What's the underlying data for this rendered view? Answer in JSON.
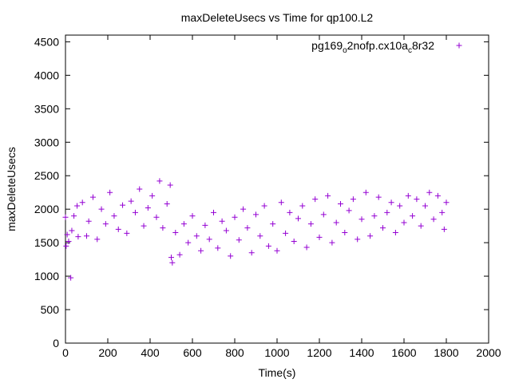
{
  "chart_data": {
    "type": "scatter",
    "title": "maxDeleteUsecs vs Time for qp100.L2",
    "xlabel": "Time(s)",
    "ylabel": "maxDeleteUsecs",
    "xlim": [
      0,
      2000
    ],
    "ylim": [
      0,
      4600
    ],
    "xticks": [
      0,
      200,
      400,
      600,
      800,
      1000,
      1200,
      1400,
      1600,
      1800,
      2000
    ],
    "yticks": [
      0,
      500,
      1000,
      1500,
      2000,
      2500,
      3000,
      3500,
      4000,
      4500
    ],
    "grid": false,
    "legend_position": "top-right",
    "marker": "+",
    "series": [
      {
        "name_parts": [
          "pg169",
          "o",
          "2nofp.cx10a",
          "c",
          "8r32"
        ],
        "color": "#9400d3",
        "points": [
          [
            0,
            1880
          ],
          [
            25,
            975
          ],
          [
            3,
            1450
          ],
          [
            8,
            1620
          ],
          [
            15,
            1520
          ],
          [
            30,
            1680
          ],
          [
            40,
            1900
          ],
          [
            55,
            2050
          ],
          [
            60,
            1590
          ],
          [
            80,
            2100
          ],
          [
            100,
            1600
          ],
          [
            110,
            1820
          ],
          [
            130,
            2180
          ],
          [
            150,
            1550
          ],
          [
            170,
            2000
          ],
          [
            190,
            1780
          ],
          [
            210,
            2250
          ],
          [
            230,
            1900
          ],
          [
            250,
            1700
          ],
          [
            270,
            2060
          ],
          [
            290,
            1640
          ],
          [
            310,
            2120
          ],
          [
            330,
            1950
          ],
          [
            350,
            2300
          ],
          [
            370,
            1750
          ],
          [
            390,
            2020
          ],
          [
            410,
            2200
          ],
          [
            430,
            1880
          ],
          [
            445,
            2420
          ],
          [
            460,
            1720
          ],
          [
            480,
            2080
          ],
          [
            495,
            2360
          ],
          [
            500,
            1280
          ],
          [
            505,
            1200
          ],
          [
            520,
            1650
          ],
          [
            540,
            1320
          ],
          [
            560,
            1780
          ],
          [
            580,
            1500
          ],
          [
            600,
            1900
          ],
          [
            620,
            1600
          ],
          [
            640,
            1380
          ],
          [
            660,
            1760
          ],
          [
            680,
            1550
          ],
          [
            700,
            1950
          ],
          [
            720,
            1420
          ],
          [
            740,
            1820
          ],
          [
            760,
            1680
          ],
          [
            780,
            1300
          ],
          [
            800,
            1880
          ],
          [
            820,
            1540
          ],
          [
            840,
            2000
          ],
          [
            860,
            1720
          ],
          [
            880,
            1350
          ],
          [
            900,
            1920
          ],
          [
            920,
            1600
          ],
          [
            940,
            2050
          ],
          [
            960,
            1450
          ],
          [
            980,
            1780
          ],
          [
            1000,
            1380
          ],
          [
            1020,
            2100
          ],
          [
            1040,
            1640
          ],
          [
            1060,
            1950
          ],
          [
            1080,
            1520
          ],
          [
            1100,
            1860
          ],
          [
            1120,
            2050
          ],
          [
            1140,
            1430
          ],
          [
            1160,
            1780
          ],
          [
            1180,
            2150
          ],
          [
            1200,
            1580
          ],
          [
            1220,
            1920
          ],
          [
            1240,
            2200
          ],
          [
            1260,
            1500
          ],
          [
            1280,
            1800
          ],
          [
            1300,
            2080
          ],
          [
            1320,
            1650
          ],
          [
            1340,
            1980
          ],
          [
            1360,
            2150
          ],
          [
            1380,
            1550
          ],
          [
            1400,
            1850
          ],
          [
            1420,
            2250
          ],
          [
            1440,
            1600
          ],
          [
            1460,
            1900
          ],
          [
            1480,
            2180
          ],
          [
            1500,
            1720
          ],
          [
            1520,
            1950
          ],
          [
            1540,
            2100
          ],
          [
            1560,
            1650
          ],
          [
            1580,
            2050
          ],
          [
            1600,
            1800
          ],
          [
            1620,
            2200
          ],
          [
            1640,
            1900
          ],
          [
            1660,
            2150
          ],
          [
            1680,
            1750
          ],
          [
            1700,
            2050
          ],
          [
            1720,
            2250
          ],
          [
            1740,
            1850
          ],
          [
            1760,
            2200
          ],
          [
            1780,
            1950
          ],
          [
            1790,
            1700
          ],
          [
            1800,
            2100
          ]
        ]
      }
    ]
  }
}
